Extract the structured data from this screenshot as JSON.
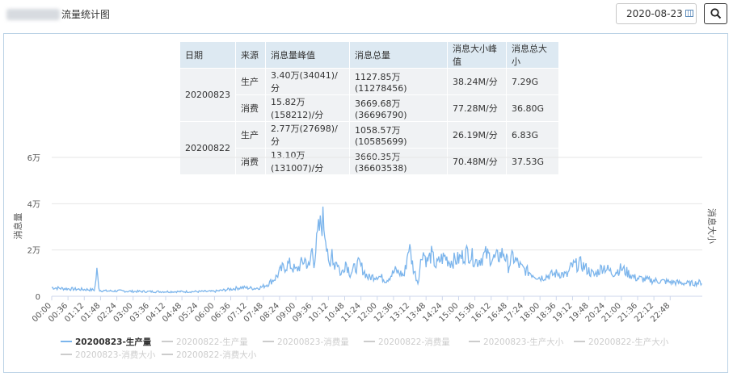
{
  "header": {
    "title": "流量统计图",
    "date_value": "2020-08-23",
    "icons": {
      "calendar": "calendar-icon",
      "search": "search-icon"
    }
  },
  "table": {
    "headers": [
      "日期",
      "来源",
      "消息量峰值",
      "消息总量",
      "消息大小峰值",
      "消息总大小"
    ],
    "groups": [
      {
        "date": "20200823",
        "rows": [
          {
            "source": "生产",
            "peak": "3.40万(34041)/分",
            "total": "1127.85万(11278456)",
            "size_peak": "38.24M/分",
            "size_total": "7.29G"
          },
          {
            "source": "消费",
            "peak": "15.82万(158212)/分",
            "total": "3669.68万(36696790)",
            "size_peak": "77.28M/分",
            "size_total": "36.80G"
          }
        ]
      },
      {
        "date": "20200822",
        "rows": [
          {
            "source": "生产",
            "peak": "2.77万(27698)/分",
            "total": "1058.57万(10585699)",
            "size_peak": "26.19M/分",
            "size_total": "6.83G"
          },
          {
            "source": "消费",
            "peak": "13.10万(131007)/分",
            "total": "3660.35万(36603538)",
            "size_peak": "70.48M/分",
            "size_total": "37.53G"
          }
        ]
      }
    ]
  },
  "chart_data": {
    "type": "line",
    "ylabel": "消息量",
    "y2label": "消息大小",
    "ylim": [
      0,
      60000
    ],
    "yticks": [
      "0",
      "2万",
      "4万",
      "6万"
    ],
    "xlim_minutes": [
      0,
      1439
    ],
    "xticks": [
      "00:00",
      "00:36",
      "01:12",
      "01:48",
      "02:24",
      "03:00",
      "03:36",
      "04:12",
      "04:48",
      "05:24",
      "06:00",
      "06:36",
      "07:12",
      "07:48",
      "08:24",
      "09:00",
      "09:36",
      "10:12",
      "10:48",
      "11:24",
      "12:00",
      "12:36",
      "13:12",
      "13:48",
      "14:24",
      "15:00",
      "15:36",
      "16:12",
      "16:48",
      "17:24",
      "18:00",
      "18:36",
      "19:12",
      "19:48",
      "20:24",
      "21:00",
      "21:36",
      "22:12",
      "22:48"
    ],
    "grid": true,
    "legend_position": "bottom",
    "series": [
      {
        "name": "20200823-生产量",
        "color": "#7cb5ec",
        "visible": true,
        "x_minutes": [
          0,
          20,
          40,
          60,
          80,
          95,
          100,
          105,
          120,
          150,
          180,
          240,
          300,
          360,
          400,
          420,
          450,
          465,
          480,
          495,
          510,
          525,
          540,
          560,
          570,
          575,
          580,
          590,
          600,
          610,
          615,
          620,
          625,
          630,
          640,
          650,
          660,
          680,
          700,
          720,
          740,
          760,
          780,
          790,
          800,
          810,
          820,
          830,
          840,
          850,
          860,
          870,
          880,
          900,
          920,
          940,
          960,
          980,
          1000,
          1010,
          1020,
          1040,
          1060,
          1080,
          1100,
          1120,
          1140,
          1150,
          1170,
          1200,
          1220,
          1240,
          1260,
          1290,
          1320,
          1350,
          1380,
          1410,
          1439
        ],
        "values": [
          3800,
          3400,
          3200,
          3000,
          2900,
          2700,
          11000,
          2600,
          2300,
          2300,
          2100,
          2000,
          2000,
          2100,
          3200,
          3800,
          3400,
          4000,
          5500,
          8000,
          12000,
          14000,
          11000,
          16000,
          12000,
          21000,
          15000,
          28000,
          33000,
          22000,
          9000,
          20000,
          13000,
          16000,
          9000,
          15000,
          10000,
          14000,
          8000,
          9000,
          7000,
          11000,
          9000,
          22000,
          12000,
          6000,
          20000,
          15000,
          18000,
          13000,
          16000,
          17000,
          15000,
          16000,
          19000,
          15000,
          18000,
          16000,
          19000,
          13000,
          17000,
          12000,
          10000,
          8000,
          9000,
          10000,
          9000,
          13000,
          14000,
          9000,
          13000,
          10000,
          12000,
          8000,
          7000,
          6500,
          6000,
          5500,
          6000
        ]
      },
      {
        "name": "20200822-生产量",
        "visible": false
      },
      {
        "name": "20200823-消费量",
        "visible": false
      },
      {
        "name": "20200822-消费量",
        "visible": false
      },
      {
        "name": "20200823-生产大小",
        "visible": false
      },
      {
        "name": "20200822-生产大小",
        "visible": false
      },
      {
        "name": "20200823-消费大小",
        "visible": false
      },
      {
        "name": "20200822-消费大小",
        "visible": false
      }
    ]
  }
}
